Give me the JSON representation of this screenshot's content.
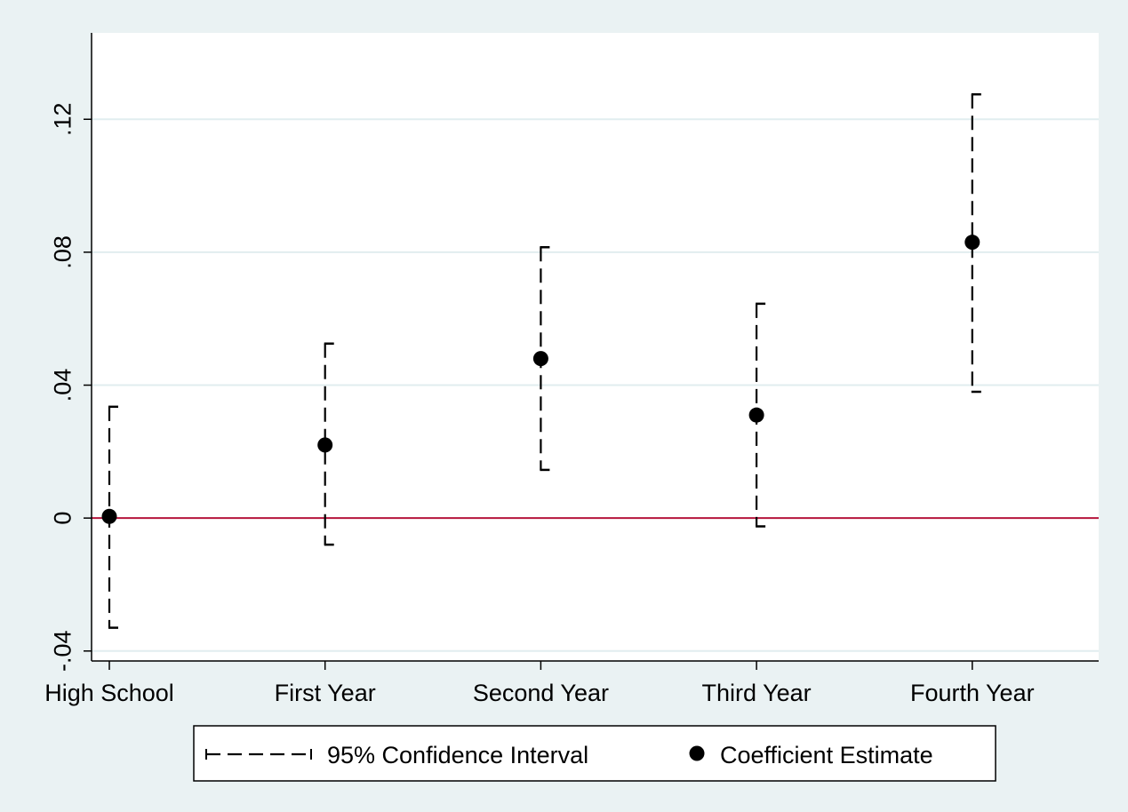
{
  "chart_data": {
    "type": "scatter",
    "title": "",
    "xlabel": "",
    "ylabel": "",
    "categories": [
      "High School",
      "First Year",
      "Second Year",
      "Third Year",
      "Fourth Year"
    ],
    "series": [
      {
        "name": "Coefficient Estimate",
        "values": [
          0.0005,
          0.022,
          0.048,
          0.031,
          0.083
        ]
      }
    ],
    "confidence_interval": {
      "name": "95% Confidence Interval",
      "lower": [
        -0.033,
        -0.008,
        0.0145,
        -0.0025,
        0.038
      ],
      "upper": [
        0.0335,
        0.0525,
        0.0815,
        0.0645,
        0.1275
      ]
    },
    "reference_line": {
      "y": 0,
      "color": "#b5143c"
    },
    "ylim": [
      -0.043,
      0.146
    ],
    "yticks": [
      -0.04,
      0,
      0.04,
      0.08,
      0.12
    ],
    "ytick_labels": [
      "-.04",
      "0",
      ".04",
      ".08",
      ".12"
    ],
    "grid": true,
    "legend_position": "bottom",
    "colors": {
      "background": "#eaf2f3",
      "plot_area": "#ffffff",
      "gridline": "#e1edef",
      "marker": "#000000",
      "interval": "#000000"
    }
  }
}
